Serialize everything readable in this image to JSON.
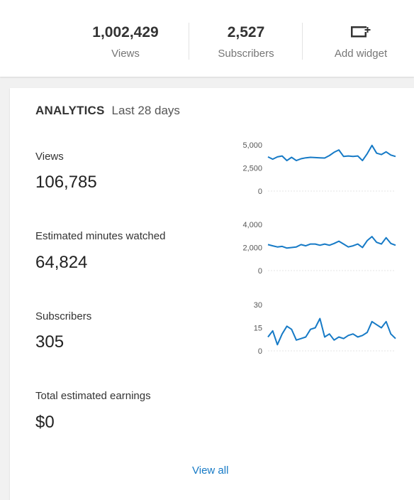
{
  "header": {
    "views": {
      "value": "1,002,429",
      "label": "Views"
    },
    "subscribers": {
      "value": "2,527",
      "label": "Subscribers"
    },
    "add_widget": {
      "label": "Add widget",
      "icon": "add-widget-icon"
    }
  },
  "analytics": {
    "title": "ANALYTICS",
    "period": "Last 28 days",
    "metrics": [
      {
        "label": "Views",
        "value": "106,785",
        "chart_ticks": [
          "5,000",
          "2,500",
          "0"
        ],
        "ymax": 5000,
        "series": [
          3700,
          3450,
          3700,
          3800,
          3300,
          3650,
          3300,
          3500,
          3600,
          3650,
          3620,
          3600,
          3580,
          3850,
          4200,
          4450,
          3750,
          3800,
          3750,
          3800,
          3300,
          4050,
          4950,
          4100,
          3950,
          4250,
          3900,
          3750
        ]
      },
      {
        "label": "Estimated minutes watched",
        "value": "64,824",
        "chart_ticks": [
          "4,000",
          "2,000",
          "0"
        ],
        "ymax": 4000,
        "series": [
          2250,
          2150,
          2050,
          2100,
          1950,
          2000,
          2050,
          2250,
          2150,
          2300,
          2300,
          2200,
          2300,
          2200,
          2350,
          2550,
          2300,
          2050,
          2150,
          2300,
          2000,
          2600,
          2950,
          2450,
          2300,
          2850,
          2350,
          2200
        ]
      },
      {
        "label": "Subscribers",
        "value": "305",
        "chart_ticks": [
          "30",
          "15",
          "0"
        ],
        "ymax": 30,
        "series": [
          9,
          13,
          4,
          11,
          16,
          14,
          7,
          8,
          9,
          14,
          15,
          21,
          9,
          11,
          7,
          9,
          8,
          10,
          11,
          9,
          10,
          12,
          19,
          17,
          15,
          19,
          11,
          8
        ]
      },
      {
        "label": "Total estimated earnings",
        "value": "$0"
      }
    ],
    "view_all": "View all",
    "line_color": "#167ac6"
  }
}
